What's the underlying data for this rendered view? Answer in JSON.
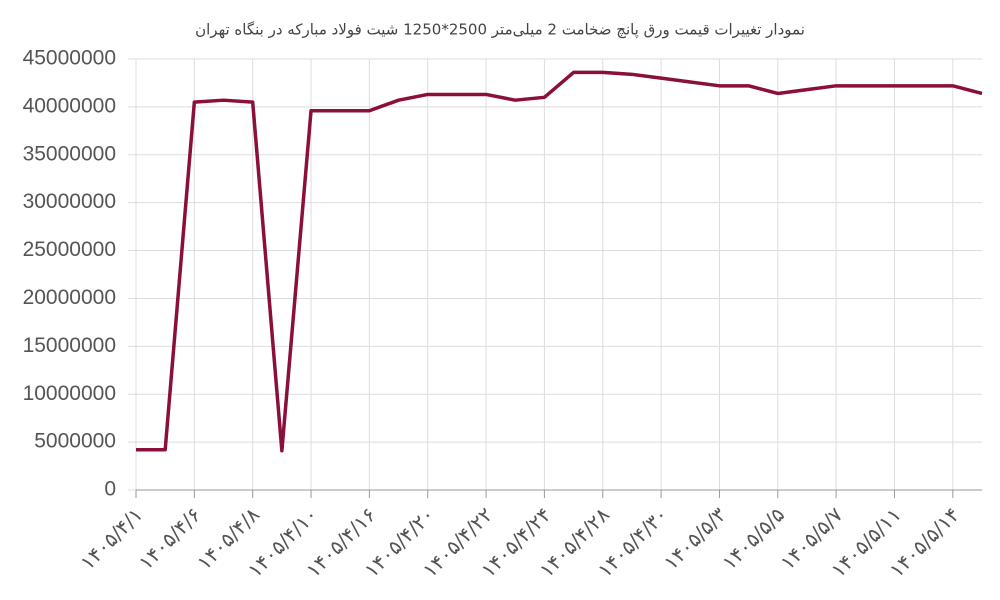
{
  "chart_data": {
    "type": "line",
    "title": "نمودار تغییرات قیمت ورق پانچ ضخامت 2 میلی‌متر 2500*1250 شیت فولاد مبارکه در بنگاه تهران",
    "categories": [
      "۱۴۰۵/۴/۱",
      null,
      "۱۴۰۵/۴/۶",
      null,
      "۱۴۰۵/۴/۸",
      null,
      "۱۴۰۵/۴/۱۰",
      null,
      "۱۴۰۵/۴/۱۶",
      null,
      "۱۴۰۵/۴/۲۰",
      null,
      "۱۴۰۵/۴/۲۲",
      null,
      "۱۴۰۵/۴/۲۴",
      null,
      "۱۴۰۵/۴/۲۸",
      null,
      "۱۴۰۵/۴/۳۰",
      null,
      "۱۴۰۵/۵/۳",
      null,
      "۱۴۰۵/۵/۵",
      null,
      "۱۴۰۵/۵/۷",
      null,
      "۱۴۰۵/۵/۱۱",
      null,
      "۱۴۰۵/۵/۱۴",
      null
    ],
    "values": [
      4200000,
      4200000,
      40500000,
      40700000,
      40500000,
      4100000,
      39600000,
      39600000,
      39600000,
      40700000,
      41300000,
      41300000,
      41300000,
      40700000,
      41000000,
      43600000,
      43600000,
      43400000,
      43000000,
      42600000,
      42200000,
      42200000,
      41400000,
      41800000,
      42200000,
      42200000,
      42200000,
      42200000,
      42200000,
      41400000
    ],
    "color": "#8a0f3c",
    "ylim": [
      0,
      45000000
    ],
    "yticks": [
      0,
      5000000,
      10000000,
      15000000,
      20000000,
      25000000,
      30000000,
      35000000,
      40000000,
      45000000
    ],
    "grid": true
  }
}
